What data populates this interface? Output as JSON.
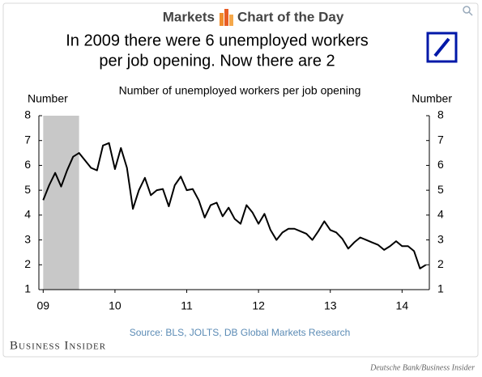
{
  "header": {
    "section": "Markets",
    "feature": "Chart of the Day"
  },
  "chart_data": {
    "type": "line",
    "title_lines": [
      "In 2009 there were 6 unemployed workers",
      "per job opening. Now there are 2"
    ],
    "subtitle": "Number of unemployed workers per job opening",
    "y_label": "Number",
    "y2_label": "Number",
    "source": "Source: BLS, JOLTS, DB Global Markets Research",
    "color": "#000000",
    "shaded_region": [
      2009.0,
      2009.5
    ],
    "shade_color": "#c8c8c8",
    "x": [
      2009,
      2009.083,
      2009.167,
      2009.25,
      2009.333,
      2009.417,
      2009.5,
      2009.583,
      2009.667,
      2009.75,
      2009.833,
      2009.917,
      2010,
      2010.083,
      2010.167,
      2010.25,
      2010.333,
      2010.417,
      2010.5,
      2010.583,
      2010.667,
      2010.75,
      2010.833,
      2010.917,
      2011,
      2011.083,
      2011.167,
      2011.25,
      2011.333,
      2011.417,
      2011.5,
      2011.583,
      2011.667,
      2011.75,
      2011.833,
      2011.917,
      2012,
      2012.083,
      2012.167,
      2012.25,
      2012.333,
      2012.417,
      2012.5,
      2012.583,
      2012.667,
      2012.75,
      2012.833,
      2012.917,
      2013,
      2013.083,
      2013.167,
      2013.25,
      2013.333,
      2013.417,
      2013.5,
      2013.583,
      2013.667,
      2013.75,
      2013.833,
      2013.917,
      2014,
      2014.083,
      2014.167,
      2014.25,
      2014.333
    ],
    "values": [
      4.6,
      5.2,
      5.7,
      5.15,
      5.8,
      6.35,
      6.5,
      6.2,
      5.9,
      5.8,
      6.8,
      6.9,
      5.85,
      6.7,
      5.9,
      4.25,
      5.0,
      5.5,
      4.8,
      5.0,
      5.05,
      4.35,
      5.2,
      5.55,
      5.0,
      5.05,
      4.6,
      3.9,
      4.4,
      4.5,
      3.95,
      4.3,
      3.85,
      3.65,
      4.4,
      4.1,
      3.65,
      4.05,
      3.4,
      3.0,
      3.3,
      3.45,
      3.45,
      3.35,
      3.25,
      3.0,
      3.35,
      3.75,
      3.4,
      3.3,
      3.05,
      2.65,
      2.9,
      3.1,
      3.0,
      2.9,
      2.8,
      2.6,
      2.75,
      2.95,
      2.75,
      2.75,
      2.55,
      1.85,
      2.0
    ],
    "xlim": [
      2008.94,
      2014.38
    ],
    "xticks": [
      {
        "value": 2009,
        "label": "09"
      },
      {
        "value": 2010,
        "label": "10"
      },
      {
        "value": 2011,
        "label": "11"
      },
      {
        "value": 2012,
        "label": "12"
      },
      {
        "value": 2013,
        "label": "13"
      },
      {
        "value": 2014,
        "label": "14"
      }
    ],
    "ylim": [
      1,
      8
    ],
    "yticks": [
      1,
      2,
      3,
      4,
      5,
      6,
      7,
      8
    ]
  },
  "footer": {
    "brand": "Business Insider",
    "credit": "Deutsche Bank/Business Insider"
  }
}
